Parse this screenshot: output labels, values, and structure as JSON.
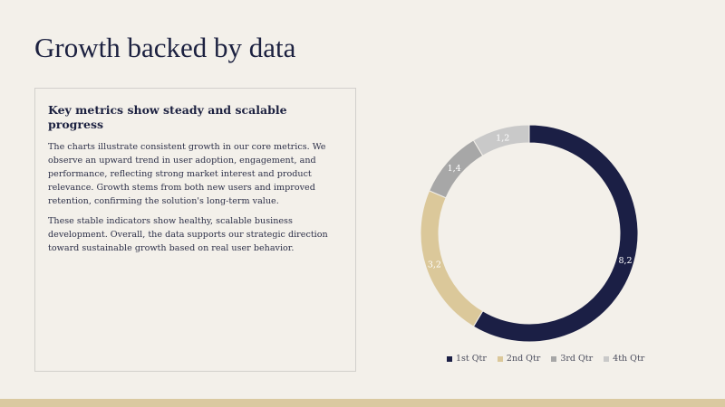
{
  "slide": {
    "title": "Growth backed by data"
  },
  "textbox": {
    "heading": "Key metrics show steady and scalable progress",
    "paragraph1": "The charts illustrate consistent growth in our core metrics. We observe an upward trend in user adoption, engagement, and performance, reflecting strong market interest and product relevance. Growth stems from both new users and improved retention, confirming the solution's long-term value.",
    "paragraph2": "These stable indicators show healthy, scalable business development. Overall, the data supports our strategic direction toward sustainable growth based on real user behavior."
  },
  "chart_data": {
    "type": "pie",
    "subtype": "doughnut",
    "categories": [
      "1st Qtr",
      "2nd Qtr",
      "3rd Qtr",
      "4th Qtr"
    ],
    "values": [
      8.2,
      3.2,
      1.4,
      1.2
    ],
    "data_labels": [
      "8,2",
      "3,2",
      "1,4",
      "1,2"
    ],
    "colors": [
      "#1b1f45",
      "#dbc89a",
      "#a7a7a7",
      "#c9c9c9"
    ],
    "legend": "bottom",
    "start_angle": "top, clockwise"
  }
}
